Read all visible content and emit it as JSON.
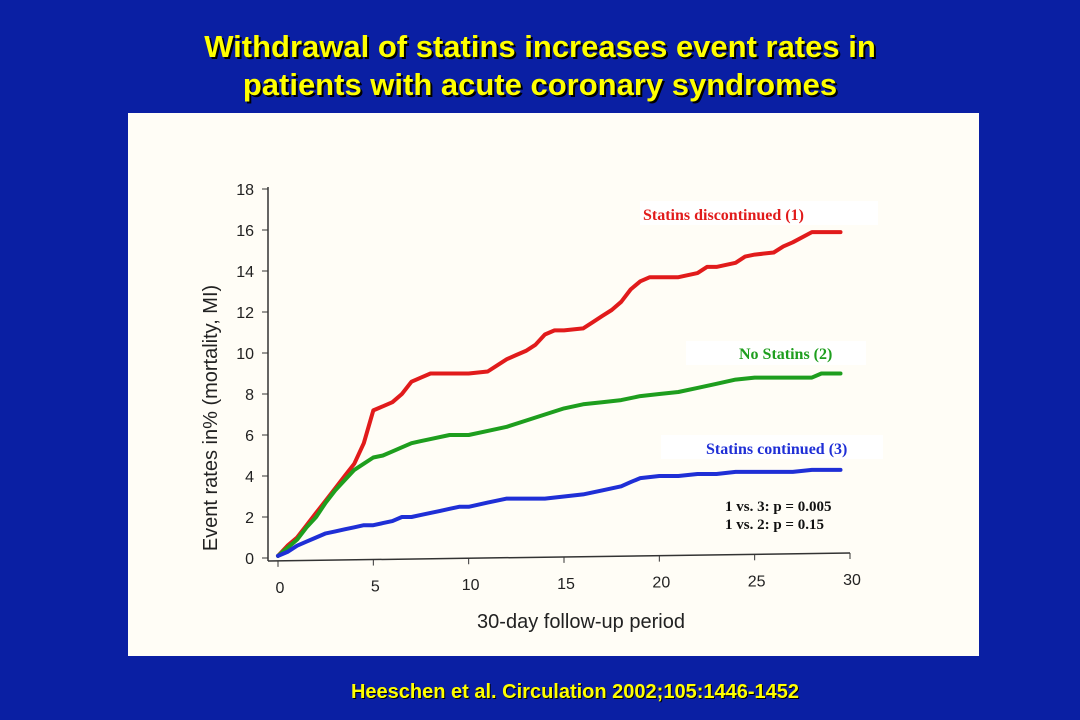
{
  "title": {
    "line1": "Withdrawal of statins increases event rates in",
    "line2": "patients with acute coronary syndromes"
  },
  "citation": "Heeschen et al. Circulation 2002;105:1446-1452",
  "chart_data": {
    "type": "line",
    "xlabel": "30-day follow-up period",
    "ylabel": "Event rates in% (mortality, MI)",
    "xlim": [
      0,
      30
    ],
    "ylim": [
      0,
      18
    ],
    "x_ticks": [
      0,
      5,
      10,
      15,
      20,
      25,
      30
    ],
    "y_ticks": [
      0,
      2,
      4,
      6,
      8,
      10,
      12,
      14,
      16,
      18
    ],
    "grid": false,
    "series": [
      {
        "name": "Statins discontinued (1)",
        "color": "#e11b1b",
        "points": [
          [
            0,
            0.1
          ],
          [
            0.5,
            0.6
          ],
          [
            1,
            1.0
          ],
          [
            1.5,
            1.6
          ],
          [
            2,
            2.2
          ],
          [
            2.5,
            2.8
          ],
          [
            3,
            3.4
          ],
          [
            3.5,
            4.0
          ],
          [
            4,
            4.6
          ],
          [
            4.5,
            5.6
          ],
          [
            5,
            7.2
          ],
          [
            5.5,
            7.4
          ],
          [
            6,
            7.6
          ],
          [
            6.5,
            8.0
          ],
          [
            7,
            8.6
          ],
          [
            7.5,
            8.8
          ],
          [
            8,
            9.0
          ],
          [
            9,
            9.0
          ],
          [
            10,
            9.0
          ],
          [
            11,
            9.1
          ],
          [
            11.5,
            9.4
          ],
          [
            12,
            9.7
          ],
          [
            12.5,
            9.9
          ],
          [
            13,
            10.1
          ],
          [
            13.5,
            10.4
          ],
          [
            14,
            10.9
          ],
          [
            14.5,
            11.1
          ],
          [
            15,
            11.1
          ],
          [
            16,
            11.2
          ],
          [
            16.5,
            11.5
          ],
          [
            17,
            11.8
          ],
          [
            17.5,
            12.1
          ],
          [
            18,
            12.5
          ],
          [
            18.5,
            13.1
          ],
          [
            19,
            13.5
          ],
          [
            19.5,
            13.7
          ],
          [
            20,
            13.7
          ],
          [
            20.5,
            13.7
          ],
          [
            21,
            13.7
          ],
          [
            22,
            13.9
          ],
          [
            22.5,
            14.2
          ],
          [
            23,
            14.2
          ],
          [
            24,
            14.4
          ],
          [
            24.5,
            14.7
          ],
          [
            25,
            14.8
          ],
          [
            26,
            14.9
          ],
          [
            26.5,
            15.2
          ],
          [
            27,
            15.4
          ],
          [
            28,
            15.9
          ],
          [
            29,
            15.9
          ],
          [
            29.5,
            15.9
          ]
        ]
      },
      {
        "name": "No Statins (2)",
        "color": "#1e9e1e",
        "points": [
          [
            0,
            0.1
          ],
          [
            0.5,
            0.5
          ],
          [
            1,
            0.9
          ],
          [
            1.5,
            1.5
          ],
          [
            2,
            2.0
          ],
          [
            2.5,
            2.7
          ],
          [
            3,
            3.3
          ],
          [
            3.5,
            3.8
          ],
          [
            4,
            4.3
          ],
          [
            4.5,
            4.6
          ],
          [
            5,
            4.9
          ],
          [
            5.5,
            5.0
          ],
          [
            6,
            5.2
          ],
          [
            6.5,
            5.4
          ],
          [
            7,
            5.6
          ],
          [
            7.5,
            5.7
          ],
          [
            8,
            5.8
          ],
          [
            9,
            6.0
          ],
          [
            10,
            6.0
          ],
          [
            11,
            6.2
          ],
          [
            12,
            6.4
          ],
          [
            13,
            6.7
          ],
          [
            14,
            7.0
          ],
          [
            15,
            7.3
          ],
          [
            16,
            7.5
          ],
          [
            17,
            7.6
          ],
          [
            18,
            7.7
          ],
          [
            19,
            7.9
          ],
          [
            20,
            8.0
          ],
          [
            21,
            8.1
          ],
          [
            22,
            8.3
          ],
          [
            23,
            8.5
          ],
          [
            24,
            8.7
          ],
          [
            25,
            8.8
          ],
          [
            26,
            8.8
          ],
          [
            27,
            8.8
          ],
          [
            28,
            8.8
          ],
          [
            28.5,
            9.0
          ],
          [
            29.5,
            9.0
          ]
        ]
      },
      {
        "name": "Statins continued (3)",
        "color": "#1f2fd6",
        "points": [
          [
            0,
            0.1
          ],
          [
            0.5,
            0.3
          ],
          [
            1,
            0.6
          ],
          [
            1.5,
            0.8
          ],
          [
            2,
            1.0
          ],
          [
            2.5,
            1.2
          ],
          [
            3,
            1.3
          ],
          [
            3.5,
            1.4
          ],
          [
            4,
            1.5
          ],
          [
            4.5,
            1.6
          ],
          [
            5,
            1.6
          ],
          [
            5.5,
            1.7
          ],
          [
            6,
            1.8
          ],
          [
            6.5,
            2.0
          ],
          [
            7,
            2.0
          ],
          [
            7.5,
            2.1
          ],
          [
            8,
            2.2
          ],
          [
            8.5,
            2.3
          ],
          [
            9,
            2.4
          ],
          [
            9.5,
            2.5
          ],
          [
            10,
            2.5
          ],
          [
            10.5,
            2.6
          ],
          [
            11,
            2.7
          ],
          [
            11.5,
            2.8
          ],
          [
            12,
            2.9
          ],
          [
            13,
            2.9
          ],
          [
            14,
            2.9
          ],
          [
            15,
            3.0
          ],
          [
            16,
            3.1
          ],
          [
            17,
            3.3
          ],
          [
            18,
            3.5
          ],
          [
            18.5,
            3.7
          ],
          [
            19,
            3.9
          ],
          [
            20,
            4.0
          ],
          [
            21,
            4.0
          ],
          [
            22,
            4.1
          ],
          [
            23,
            4.1
          ],
          [
            24,
            4.2
          ],
          [
            25,
            4.2
          ],
          [
            26,
            4.2
          ],
          [
            27,
            4.2
          ],
          [
            28,
            4.3
          ],
          [
            29.5,
            4.3
          ]
        ]
      }
    ],
    "annotations": [
      "1 vs. 3: p = 0.005",
      "1 vs. 2: p = 0.15"
    ]
  }
}
